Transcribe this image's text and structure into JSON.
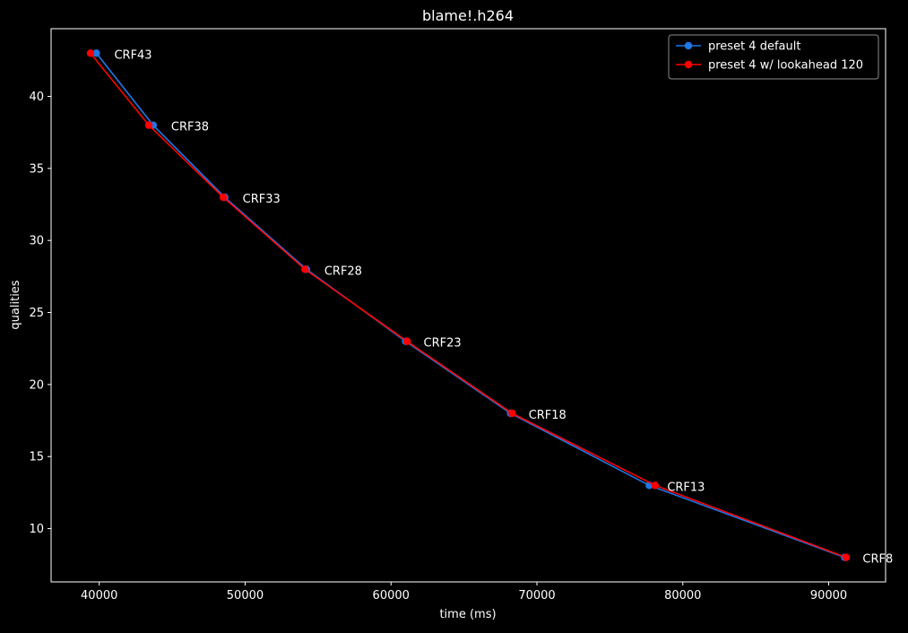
{
  "chart_data": {
    "type": "line",
    "title": "blame!.h264",
    "xlabel": "time (ms)",
    "ylabel": "qualities",
    "xlim": [
      36700,
      93900
    ],
    "ylim": [
      6.3,
      44.7
    ],
    "xticks": [
      40000,
      50000,
      60000,
      70000,
      80000,
      90000
    ],
    "yticks": [
      10,
      15,
      20,
      25,
      30,
      35,
      40
    ],
    "grid": false,
    "legend_position": "top-right",
    "series": [
      {
        "name": "preset 4 default",
        "color": "#1f77e8",
        "points": [
          {
            "x": 39800,
            "y": 43
          },
          {
            "x": 43700,
            "y": 38
          },
          {
            "x": 48600,
            "y": 33
          },
          {
            "x": 54200,
            "y": 28
          },
          {
            "x": 61000,
            "y": 23
          },
          {
            "x": 68200,
            "y": 18
          },
          {
            "x": 77700,
            "y": 13
          },
          {
            "x": 91100,
            "y": 8
          }
        ]
      },
      {
        "name": "preset 4 w/ lookahead 120",
        "color": "#ff0000",
        "points": [
          {
            "x": 39400,
            "y": 43
          },
          {
            "x": 43400,
            "y": 38
          },
          {
            "x": 48500,
            "y": 33
          },
          {
            "x": 54100,
            "y": 28
          },
          {
            "x": 61100,
            "y": 23
          },
          {
            "x": 68300,
            "y": 18
          },
          {
            "x": 78100,
            "y": 13
          },
          {
            "x": 91200,
            "y": 8
          }
        ]
      }
    ],
    "annotations": [
      {
        "text": "CRF43",
        "x": 39800,
        "y": 43
      },
      {
        "text": "CRF38",
        "x": 43700,
        "y": 38
      },
      {
        "text": "CRF33",
        "x": 48600,
        "y": 33
      },
      {
        "text": "CRF28",
        "x": 54200,
        "y": 28
      },
      {
        "text": "CRF23",
        "x": 61000,
        "y": 23
      },
      {
        "text": "CRF18",
        "x": 68200,
        "y": 18
      },
      {
        "text": "CRF13",
        "x": 77700,
        "y": 13
      },
      {
        "text": "CRF8",
        "x": 91100,
        "y": 8
      }
    ]
  }
}
